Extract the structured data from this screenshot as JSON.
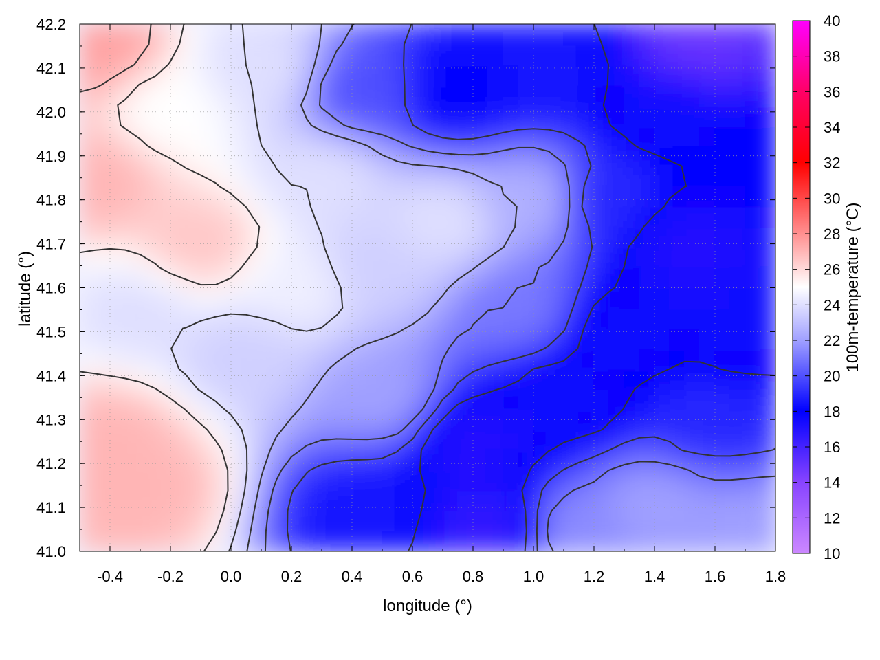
{
  "chart_data": {
    "type": "heatmap",
    "xlabel": "longitude (°)",
    "ylabel": "latitude (°)",
    "colorbar_label": "100m-temperature (°C)",
    "xlim": [
      -0.5,
      1.8
    ],
    "ylim": [
      41.0,
      42.2
    ],
    "xticks": [
      -0.4,
      -0.2,
      0.0,
      0.2,
      0.4,
      0.6,
      0.8,
      1.0,
      1.2,
      1.4,
      1.6,
      1.8
    ],
    "xtick_labels": [
      "-0.4",
      "-0.2",
      "0.0",
      "0.2",
      "0.4",
      "0.6",
      "0.8",
      "1.0",
      "1.2",
      "1.4",
      "1.6",
      "1.8"
    ],
    "yticks": [
      41.0,
      41.1,
      41.2,
      41.3,
      41.4,
      41.5,
      41.6,
      41.7,
      41.8,
      41.9,
      42.0,
      42.1,
      42.2
    ],
    "ytick_labels": [
      "41.0",
      "41.1",
      "41.2",
      "41.3",
      "41.4",
      "41.5",
      "41.6",
      "41.7",
      "41.8",
      "41.9",
      "42.0",
      "42.1",
      "42.2"
    ],
    "colorbar": {
      "range": [
        10,
        40
      ],
      "ticks": [
        10,
        12,
        14,
        16,
        18,
        20,
        22,
        24,
        26,
        28,
        30,
        32,
        34,
        36,
        38,
        40
      ],
      "tick_labels": [
        "10",
        "12",
        "14",
        "16",
        "18",
        "20",
        "22",
        "24",
        "26",
        "28",
        "30",
        "32",
        "34",
        "36",
        "38",
        "40"
      ],
      "colors": [
        {
          "value": 10,
          "color": "#cc88ff"
        },
        {
          "value": 14,
          "color": "#8844ff"
        },
        {
          "value": 18,
          "color": "#0000ff"
        },
        {
          "value": 22,
          "color": "#a0a0ff"
        },
        {
          "value": 25,
          "color": "#ffffff"
        },
        {
          "value": 28,
          "color": "#ff9090"
        },
        {
          "value": 32,
          "color": "#ff0000"
        },
        {
          "value": 36,
          "color": "#ff0066"
        },
        {
          "value": 40,
          "color": "#ff00ff"
        }
      ]
    },
    "field_samples": [
      {
        "lon": -0.45,
        "lat": 42.15,
        "temp": 27.5
      },
      {
        "lon": -0.45,
        "lat": 41.85,
        "temp": 27.0
      },
      {
        "lon": -0.4,
        "lat": 41.25,
        "temp": 27.0
      },
      {
        "lon": -0.3,
        "lat": 41.15,
        "temp": 27.0
      },
      {
        "lon": -0.1,
        "lat": 41.7,
        "temp": 26.5
      },
      {
        "lon": -0.2,
        "lat": 42.0,
        "temp": 25.0
      },
      {
        "lon": -0.3,
        "lat": 41.55,
        "temp": 24.0
      },
      {
        "lon": 0.1,
        "lat": 42.1,
        "temp": 24.0
      },
      {
        "lon": 0.05,
        "lat": 41.45,
        "temp": 23.5
      },
      {
        "lon": 0.3,
        "lat": 41.85,
        "temp": 24.0
      },
      {
        "lon": 0.2,
        "lat": 41.6,
        "temp": 24.5
      },
      {
        "lon": 0.45,
        "lat": 42.05,
        "temp": 20.0
      },
      {
        "lon": 0.5,
        "lat": 41.65,
        "temp": 23.5
      },
      {
        "lon": 0.5,
        "lat": 41.35,
        "temp": 22.0
      },
      {
        "lon": 0.45,
        "lat": 41.1,
        "temp": 18.5
      },
      {
        "lon": 0.7,
        "lat": 41.75,
        "temp": 24.0
      },
      {
        "lon": 0.75,
        "lat": 42.05,
        "temp": 18.0
      },
      {
        "lon": 0.8,
        "lat": 41.25,
        "temp": 17.0
      },
      {
        "lon": 0.85,
        "lat": 41.05,
        "temp": 16.5
      },
      {
        "lon": 0.95,
        "lat": 41.55,
        "temp": 21.0
      },
      {
        "lon": 1.0,
        "lat": 41.8,
        "temp": 22.5
      },
      {
        "lon": 1.05,
        "lat": 42.1,
        "temp": 18.5
      },
      {
        "lon": 1.1,
        "lat": 41.35,
        "temp": 17.5
      },
      {
        "lon": 1.25,
        "lat": 41.8,
        "temp": 19.0
      },
      {
        "lon": 1.3,
        "lat": 41.5,
        "temp": 17.5
      },
      {
        "lon": 1.45,
        "lat": 42.0,
        "temp": 17.5
      },
      {
        "lon": 1.5,
        "lat": 41.7,
        "temp": 17.0
      },
      {
        "lon": 1.55,
        "lat": 42.15,
        "temp": 15.0
      },
      {
        "lon": 1.6,
        "lat": 41.3,
        "temp": 19.0
      },
      {
        "lon": 1.7,
        "lat": 41.5,
        "temp": 17.5
      },
      {
        "lon": 1.75,
        "lat": 41.9,
        "temp": 18.0
      },
      {
        "lon": 1.4,
        "lat": 41.1,
        "temp": 22.0
      },
      {
        "lon": 1.7,
        "lat": 41.05,
        "temp": 22.0
      },
      {
        "lon": 1.15,
        "lat": 41.05,
        "temp": 21.5
      }
    ]
  }
}
